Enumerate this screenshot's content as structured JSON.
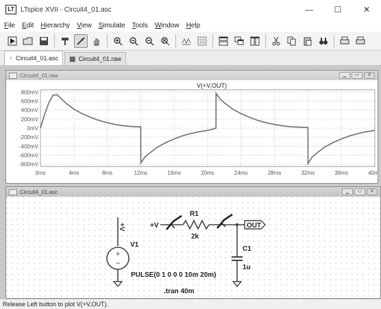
{
  "window": {
    "title": "LTspice XVII - Circuit4_01.asc",
    "app_icon": "LT"
  },
  "window_controls": {
    "minimize": "—",
    "maximize": "☐",
    "close": "✕"
  },
  "menu": [
    {
      "first": "F",
      "rest": "ile"
    },
    {
      "first": "E",
      "rest": "dit"
    },
    {
      "first": "H",
      "rest": "ierarchy"
    },
    {
      "first": "V",
      "rest": "iew"
    },
    {
      "first": "S",
      "rest": "imulate"
    },
    {
      "first": "T",
      "rest": "ools"
    },
    {
      "first": "W",
      "rest": "indow"
    },
    {
      "first": "H",
      "rest": "elp"
    }
  ],
  "toolbar_icons": [
    "run-icon",
    "open-icon",
    "save-icon",
    "sep",
    "hammer-icon",
    "probe-icon",
    "hand-icon",
    "sep",
    "zoom-in-icon",
    "zoom-out-icon",
    "zoom-out-alt-icon",
    "zoom-fit-icon",
    "sep",
    "autorange-icon",
    "grid-icon",
    "sep",
    "tile-horizontal-icon",
    "cascade-icon",
    "tile-vertical-icon",
    "sep",
    "cut-icon",
    "copy-icon",
    "paste-icon",
    "find-icon",
    "sep",
    "print-icon",
    "print-setup-icon"
  ],
  "tabs": [
    {
      "label": "Circuit4_01.asc",
      "icon": "schematic-tab-icon",
      "active": true
    },
    {
      "label": "Circuit4_01.raw",
      "icon": "waveform-tab-icon",
      "active": false
    }
  ],
  "waveform_window": {
    "title": "Circuit4_01.raw",
    "controls": {
      "minimize": "▁",
      "restore": "▭",
      "close": "✕"
    }
  },
  "schematic_window": {
    "title": "Circuit4_01.asc",
    "controls": {
      "minimize": "▁",
      "restore": "▭",
      "close": "✕"
    }
  },
  "chart_data": {
    "type": "line",
    "title": "V(+V,OUT)",
    "xlabel": "",
    "ylabel": "",
    "x_unit": "ms",
    "y_unit": "mV",
    "xlim": [
      0,
      40
    ],
    "ylim": [
      -850,
      850
    ],
    "x_ticks": [
      "0ms",
      "4ms",
      "8ms",
      "12ms",
      "16ms",
      "20ms",
      "24ms",
      "28ms",
      "32ms",
      "36ms",
      "40ms"
    ],
    "y_ticks": [
      "800mV",
      "600mV",
      "400mV",
      "200mV",
      "0mV",
      "-200mV",
      "-400mV",
      "-600mV",
      "-800mV"
    ],
    "grid": true,
    "series": [
      {
        "name": "V(+V,OUT)",
        "color": "#7a7a7a",
        "x": [
          0,
          0.5,
          1,
          1.5,
          2,
          3,
          4,
          5,
          6,
          7,
          8,
          9,
          10,
          11,
          11.999,
          12.01,
          12.5,
          13,
          14,
          15,
          16,
          17,
          18,
          19,
          20,
          20.6,
          20.999,
          21.01,
          21.5,
          22,
          23,
          24,
          25,
          26,
          27,
          28,
          29,
          30,
          31,
          31.999,
          32.01,
          32.5,
          33,
          34,
          35,
          36,
          37,
          38,
          39,
          40
        ],
        "y": [
          0,
          300,
          560,
          730,
          740,
          560,
          420,
          320,
          240,
          170,
          120,
          80,
          50,
          35,
          30,
          -770,
          -640,
          -560,
          -420,
          -320,
          -240,
          -170,
          -120,
          -80,
          -50,
          -25,
          0,
          770,
          640,
          560,
          420,
          320,
          240,
          170,
          120,
          80,
          50,
          30,
          20,
          15,
          -785,
          -640,
          -560,
          -420,
          -320,
          -240,
          -170,
          -120,
          -80,
          -50
        ]
      }
    ]
  },
  "schematic": {
    "source_node": "+V",
    "resistor_name": "R1",
    "resistor_value": "2k",
    "source_name": "V1",
    "source_spec": "PULSE(0 1 0 0 0 10m 20m)",
    "capacitor_name": "C1",
    "capacitor_value": "1u",
    "output_label": "OUT",
    "directive": ".tran 40m",
    "v_flag": "+V"
  },
  "status": {
    "text": "Release Left button to plot V(+V,OUT)."
  }
}
